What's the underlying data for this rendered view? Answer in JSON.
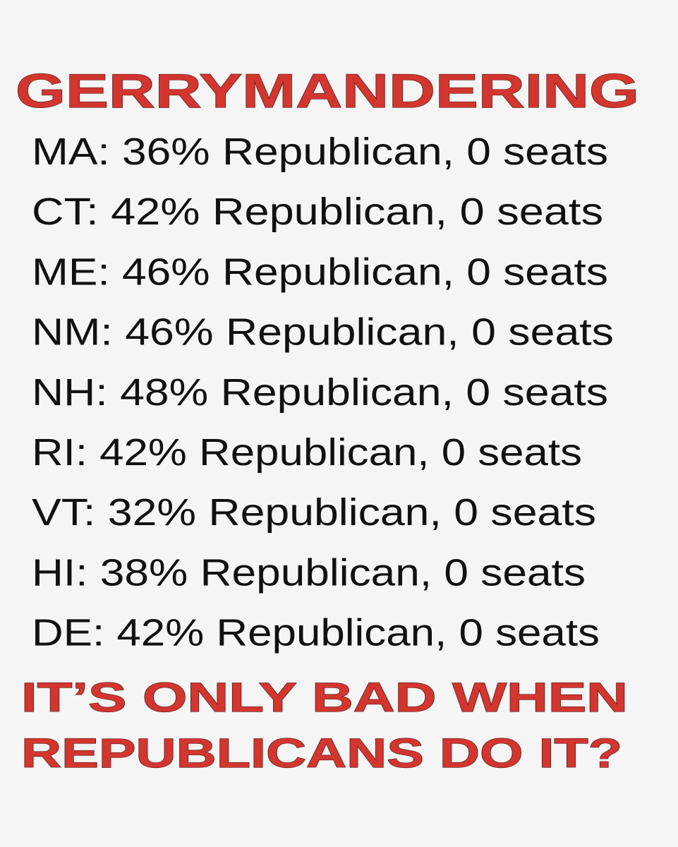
{
  "header": {
    "title": "GERRYMANDERING"
  },
  "lines": [
    "MA: 36% Republican, 0 seats",
    "CT: 42% Republican, 0 seats",
    "ME: 46% Republican, 0 seats",
    "NM: 46% Republican, 0 seats",
    "NH: 48% Republican, 0 seats",
    "RI: 42% Republican, 0 seats",
    "VT: 32% Republican, 0 seats",
    "HI: 38% Republican, 0 seats",
    "DE: 42% Republican, 0 seats"
  ],
  "footer": {
    "lines": [
      "IT’S ONLY BAD WHEN",
      "REPUBLICANS DO IT?"
    ]
  }
}
